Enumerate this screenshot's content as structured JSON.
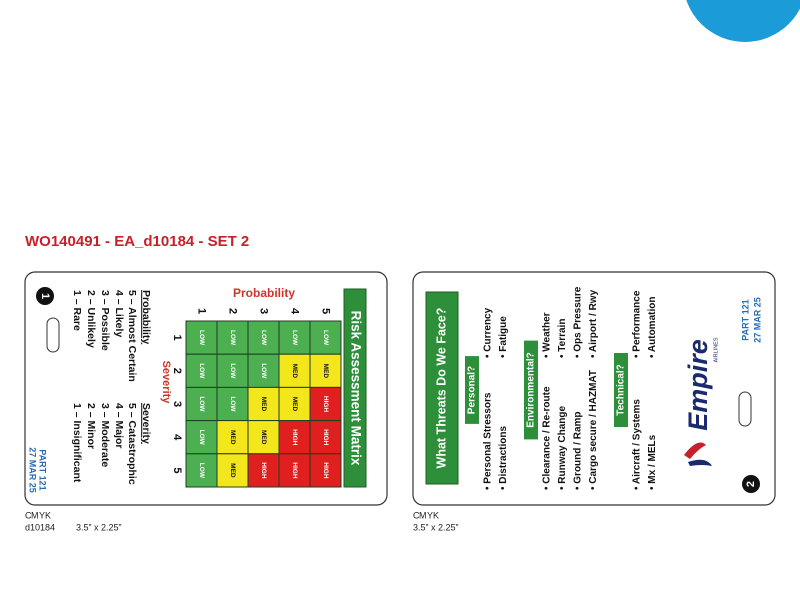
{
  "header": {
    "title": "WO140491 - EA_d10184 - SET 2"
  },
  "front": {
    "badge": "1",
    "title": "Risk Assessment Matrix",
    "probability_label": "Probability",
    "severity_label": "Severity",
    "probability_numbers": [
      "1",
      "2",
      "3",
      "4",
      "5"
    ],
    "severity_numbers": [
      "1",
      "2",
      "3",
      "4",
      "5"
    ],
    "matrix": [
      [
        "LOW",
        "LOW",
        "LOW",
        "LOW",
        "LOW"
      ],
      [
        "LOW",
        "LOW",
        "LOW",
        "MED",
        "MED"
      ],
      [
        "LOW",
        "LOW",
        "MED",
        "MED",
        "HIGH"
      ],
      [
        "LOW",
        "MED",
        "MED",
        "HIGH",
        "HIGH"
      ],
      [
        "LOW",
        "MED",
        "HIGH",
        "HIGH",
        "HIGH"
      ]
    ],
    "probability_legend": {
      "title": "Probability",
      "items": [
        "5 – Almost Certain",
        "4 – Likely",
        "3 – Possible",
        "2 – Unlikely",
        "1 – Rare"
      ]
    },
    "severity_legend": {
      "title": "Severity",
      "items": [
        "5 – Catastrophic",
        "4 – Major",
        "3 – Moderate",
        "2 – Minor",
        "1 – Insignificant"
      ]
    },
    "part": "PART 121",
    "date": "27 MAR 25"
  },
  "back": {
    "badge": "2",
    "title": "What Threats Do We Face?",
    "sections": [
      {
        "heading": "Personal?",
        "rows": [
          [
            "• Personal Stressors",
            "• Currency"
          ],
          [
            "• Distractions",
            "• Fatigue"
          ]
        ]
      },
      {
        "heading": "Environmental?",
        "rows": [
          [
            "• Clearance / Re-route",
            "• Weather"
          ],
          [
            "• Runway Change",
            "• Terrain"
          ],
          [
            "• Ground / Ramp",
            "• Ops Pressure"
          ],
          [
            "• Cargo secure / HAZMAT",
            "• Airport / Rwy"
          ]
        ]
      },
      {
        "heading": "Technical?",
        "rows": [
          [
            "• Aircraft / Systems",
            "• Performance"
          ],
          [
            "• Mx / MELs",
            "• Automation"
          ]
        ]
      }
    ],
    "logo": "Empire",
    "logo_subtitle": "AIRLINES",
    "part": "PART 121",
    "date": "27 MAR 25"
  },
  "footer": {
    "front": {
      "cmyk": [
        "C",
        "M",
        "Y",
        "K"
      ],
      "code": "d10184",
      "size": "3.5” x 2.25”"
    },
    "back": {
      "cmyk": [
        "C",
        "M",
        "Y",
        "K"
      ],
      "size": "3.5” x 2.25”"
    }
  }
}
